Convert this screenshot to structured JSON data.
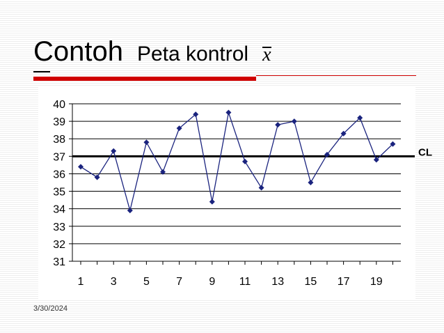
{
  "slide": {
    "title_main": "Contoh",
    "title_sub": "Peta kontrol",
    "title_symbol": "x",
    "date": "3/30/2024"
  },
  "colors": {
    "accent_red": "#d00000",
    "series": "#1a237e",
    "cl_line": "#000000"
  },
  "chart_data": {
    "type": "line",
    "title": "",
    "xlabel": "",
    "ylabel": "",
    "x": [
      1,
      2,
      3,
      4,
      5,
      6,
      7,
      8,
      9,
      10,
      11,
      12,
      13,
      14,
      15,
      16,
      17,
      18,
      19,
      20
    ],
    "xticks": [
      "1",
      "3",
      "5",
      "7",
      "9",
      "11",
      "13",
      "15",
      "17",
      "19"
    ],
    "yticks": [
      "31",
      "32",
      "33",
      "34",
      "35",
      "36",
      "37",
      "38",
      "39",
      "40"
    ],
    "ylim": [
      31,
      40
    ],
    "grid": true,
    "series": [
      {
        "values": [
          36.4,
          35.8,
          37.3,
          33.9,
          37.8,
          36.1,
          38.6,
          39.4,
          34.4,
          39.5,
          36.7,
          35.2,
          38.8,
          39.0,
          35.5,
          37.1,
          38.3,
          39.2,
          36.8,
          37.7
        ]
      }
    ],
    "control_line": {
      "label": "CL",
      "value": 37.0
    }
  }
}
